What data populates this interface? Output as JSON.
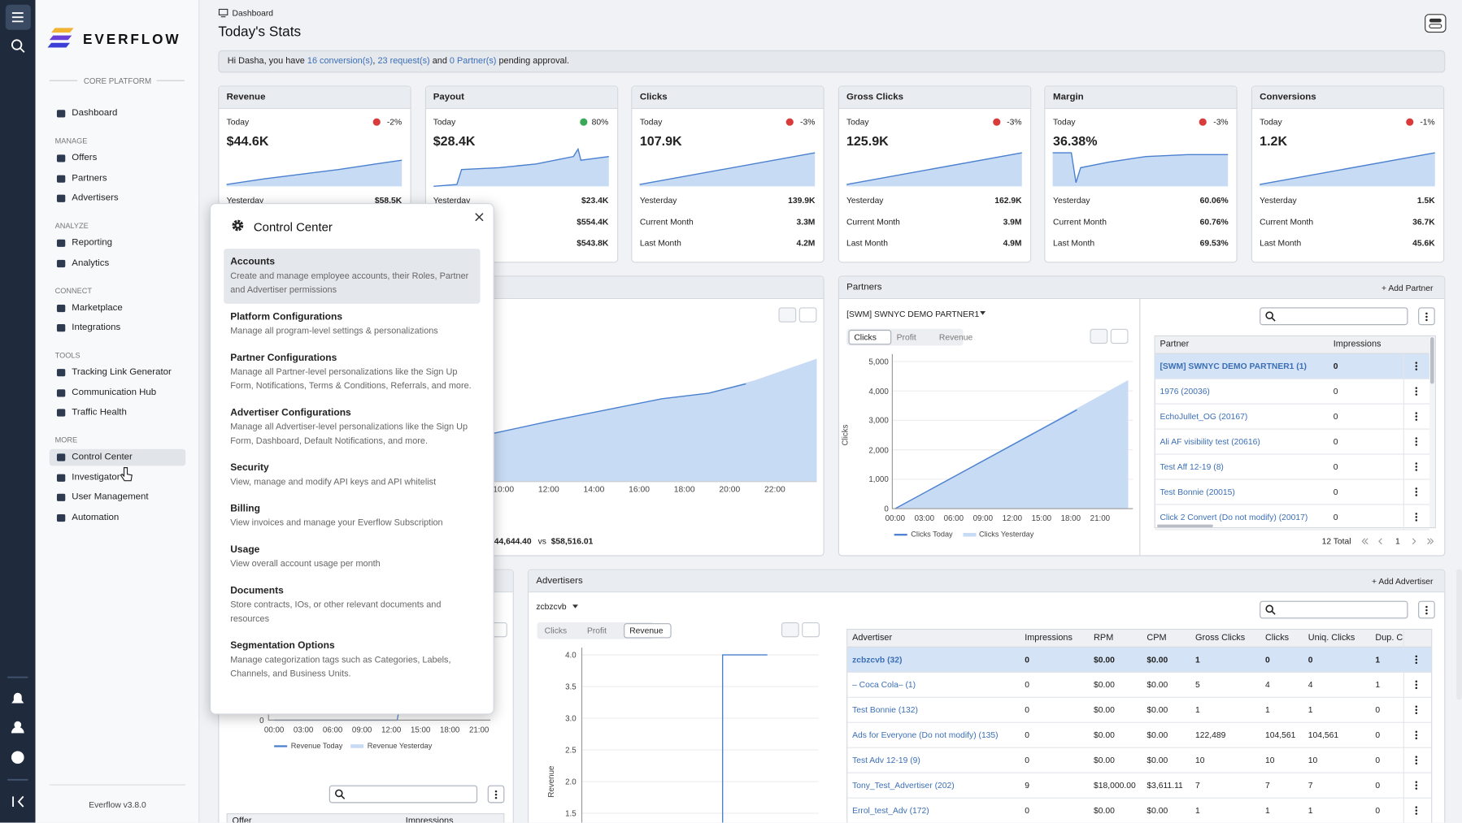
{
  "sidebar": {
    "brand": "EVERFLOW",
    "section": "CORE PLATFORM",
    "groups": [
      {
        "items": [
          "Dashboard"
        ]
      },
      {
        "heading": "MANAGE",
        "items": [
          "Offers",
          "Partners",
          "Advertisers"
        ]
      },
      {
        "heading": "ANALYZE",
        "items": [
          "Reporting",
          "Analytics"
        ]
      },
      {
        "heading": "CONNECT",
        "items": [
          "Marketplace",
          "Integrations"
        ]
      },
      {
        "heading": "TOOLS",
        "items": [
          "Tracking Link Generator",
          "Communication Hub",
          "Traffic Health"
        ]
      },
      {
        "heading": "MORE",
        "items": [
          "Control Center",
          "Investigator",
          "User Management",
          "Automation"
        ]
      }
    ],
    "active": {
      "group": 5,
      "item": 0
    },
    "version": "Everflow v3.8.0"
  },
  "header": {
    "breadcrumb": "Dashboard",
    "title": "Today's Stats"
  },
  "notice": [
    {
      "text": "Hi Dasha, you have ",
      "link": false
    },
    {
      "text": "16 conversion(s)",
      "link": true
    },
    {
      "text": ", ",
      "link": false
    },
    {
      "text": "23 request(s)",
      "link": true
    },
    {
      "text": " and ",
      "link": false
    },
    {
      "text": "0 Partner(s)",
      "link": true
    },
    {
      "text": " pending approval.",
      "link": false
    }
  ],
  "kpis": [
    {
      "title": "Revenue",
      "period": "Today",
      "change": "-2%",
      "trend": "down",
      "value": "$44.6K",
      "rows": [
        [
          "Yesterday",
          "$58.5K"
        ]
      ]
    },
    {
      "title": "Payout",
      "period": "Today",
      "change": "80%",
      "trend": "up",
      "value": "$28.4K",
      "rows": [
        [
          "Yesterday",
          "$23.4K"
        ],
        [
          "Current Month",
          "$554.4K"
        ],
        [
          "Last Month",
          "$543.8K"
        ]
      ]
    },
    {
      "title": "Clicks",
      "period": "Today",
      "change": "-3%",
      "trend": "down",
      "value": "107.9K",
      "rows": [
        [
          "Yesterday",
          "139.9K"
        ],
        [
          "Current Month",
          "3.3M"
        ],
        [
          "Last Month",
          "4.2M"
        ]
      ]
    },
    {
      "title": "Gross Clicks",
      "period": "Today",
      "change": "-3%",
      "trend": "down",
      "value": "125.9K",
      "rows": [
        [
          "Yesterday",
          "162.9K"
        ],
        [
          "Current Month",
          "3.9M"
        ],
        [
          "Last Month",
          "4.9M"
        ]
      ]
    },
    {
      "title": "Margin",
      "period": "Today",
      "change": "-3%",
      "trend": "down",
      "value": "36.38%",
      "rows": [
        [
          "Yesterday",
          "60.06%"
        ],
        [
          "Current Month",
          "60.76%"
        ],
        [
          "Last Month",
          "69.53%"
        ]
      ]
    },
    {
      "title": "Conversions",
      "period": "Today",
      "change": "-1%",
      "trend": "down",
      "value": "1.2K",
      "rows": [
        [
          "Yesterday",
          "1.5K"
        ],
        [
          "Current Month",
          "36.7K"
        ],
        [
          "Last Month",
          "45.6K"
        ]
      ]
    }
  ],
  "revenue_panel": {
    "xticks": [
      "10:00",
      "12:00",
      "14:00",
      "16:00",
      "18:00",
      "20:00",
      "22:00"
    ],
    "total_today": "44,644.40",
    "vs": "vs",
    "total_yesterday": "$58,516.01"
  },
  "partners": {
    "title": "Partners",
    "add": "+ Add Partner",
    "selected": "[SWM] SWNYC DEMO PARTNER1",
    "tabs": [
      "Clicks",
      "Profit",
      "Revenue"
    ],
    "active_tab": 0,
    "y_label": "Clicks",
    "yticks": [
      "5,000",
      "4,000",
      "3,000",
      "2,000",
      "1,000",
      "0"
    ],
    "xticks": [
      "00:00",
      "03:00",
      "06:00",
      "09:00",
      "12:00",
      "15:00",
      "18:00",
      "21:00"
    ],
    "legend": [
      "Clicks Today",
      "Clicks Yesterday"
    ],
    "columns": [
      "Partner",
      "Impressions"
    ],
    "rows": [
      [
        "[SWM] SWNYC DEMO PARTNER1 (1)",
        "0"
      ],
      [
        "1976 (20036)",
        "0"
      ],
      [
        "EchoJullet_OG (20167)",
        "0"
      ],
      [
        "Ali AF visibility test (20616)",
        "0"
      ],
      [
        "Test Aff 12-19 (8)",
        "0"
      ],
      [
        "Test Bonnie (20015)",
        "0"
      ],
      [
        "Click 2 Convert (Do not modify) (20017)",
        "0"
      ]
    ],
    "total": "12 Total",
    "page": "1"
  },
  "offers_panel": {
    "y0": "0",
    "xticks": [
      "00:00",
      "03:00",
      "06:00",
      "09:00",
      "12:00",
      "15:00",
      "18:00",
      "21:00"
    ],
    "legend": [
      "Revenue Today",
      "Revenue Yesterday"
    ],
    "columns": [
      "Offer",
      "Impressions"
    ]
  },
  "advertisers": {
    "title": "Advertisers",
    "add": "+ Add Advertiser",
    "selected": "zcbzcvb",
    "tabs": [
      "Clicks",
      "Profit",
      "Revenue"
    ],
    "active_tab": 2,
    "y_label": "Revenue",
    "yticks": [
      "4.0",
      "3.5",
      "3.0",
      "2.5",
      "2.0",
      "1.5"
    ],
    "columns": [
      "Advertiser",
      "Impressions",
      "RPM",
      "CPM",
      "Gross Clicks",
      "Clicks",
      "Uniq. Clicks",
      "Dup. C"
    ],
    "rows": [
      [
        "zcbzcvb (32)",
        "0",
        "$0.00",
        "$0.00",
        "1",
        "0",
        "0",
        "1"
      ],
      [
        "– Coca Cola– (1)",
        "0",
        "$0.00",
        "$0.00",
        "5",
        "4",
        "4",
        "1"
      ],
      [
        "Test Bonnie (132)",
        "0",
        "$0.00",
        "$0.00",
        "1",
        "1",
        "1",
        "0"
      ],
      [
        "Ads for Everyone (Do not modify) (135)",
        "0",
        "$0.00",
        "$0.00",
        "122,489",
        "104,561",
        "104,561",
        "0"
      ],
      [
        "Test Adv 12-19 (9)",
        "0",
        "$0.00",
        "$0.00",
        "10",
        "10",
        "10",
        "0"
      ],
      [
        "Tony_Test_Advertiser (202)",
        "9",
        "$18,000.00",
        "$3,611.11",
        "7",
        "7",
        "7",
        "0"
      ],
      [
        "Errol_test_Adv (172)",
        "0",
        "$0.00",
        "$0.00",
        "1",
        "1",
        "1",
        "0"
      ]
    ]
  },
  "control_center": {
    "title": "Control Center",
    "items": [
      {
        "title": "Accounts",
        "description": "Create and manage employee accounts, their Roles, Partner and Advertiser permissions"
      },
      {
        "title": "Platform Configurations",
        "description": "Manage all program-level settings & personalizations"
      },
      {
        "title": "Partner Configurations",
        "description": "Manage all Partner-level personalizations like the Sign Up Form, Notifications, Terms & Conditions, Referrals, and more."
      },
      {
        "title": "Advertiser Configurations",
        "description": "Manage all Advertiser-level personalizations like the Sign Up Form, Dashboard, Default Notifications, and more."
      },
      {
        "title": "Security",
        "description": "View, manage and modify API keys and API whitelist"
      },
      {
        "title": "Billing",
        "description": "View invoices and manage your Everflow Subscription"
      },
      {
        "title": "Usage",
        "description": "View overall account usage per month"
      },
      {
        "title": "Documents",
        "description": "Store contracts, IOs, or other relevant documents and resources"
      },
      {
        "title": "Segmentation Options",
        "description": "Manage categorization tags such as Categories, Labels, Channels, and Business Units."
      }
    ],
    "highlighted": 0
  }
}
